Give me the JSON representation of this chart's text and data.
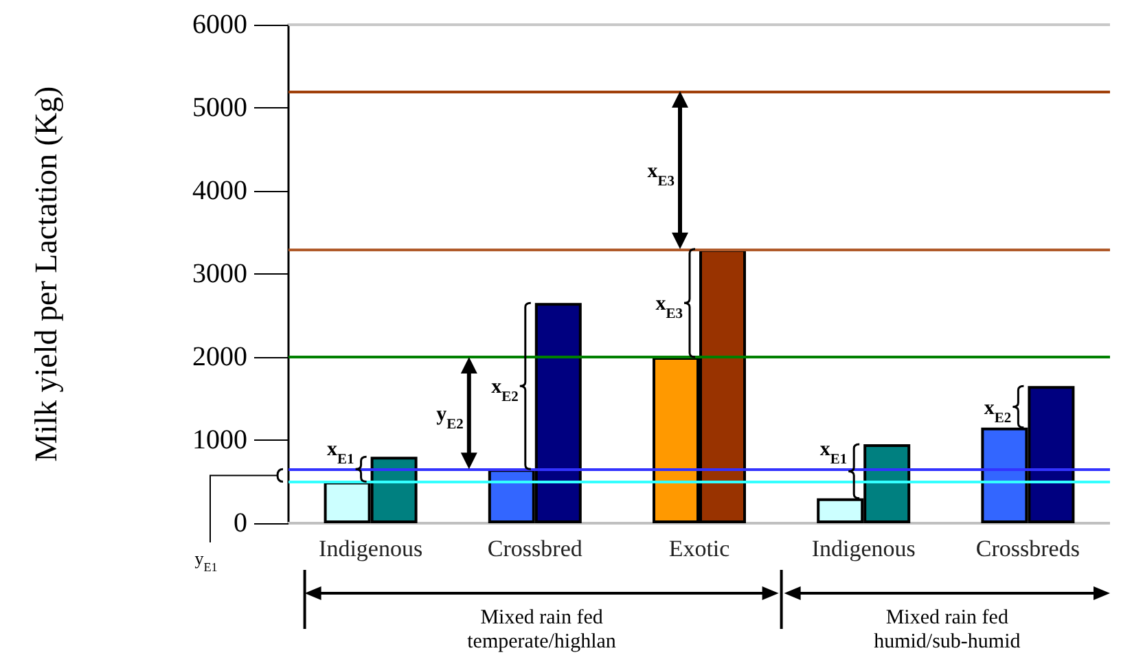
{
  "chart_data": {
    "type": "bar",
    "ylabel": "Milk yield per Lactation (Kg)",
    "categories": [
      "Indigenous",
      "Crossbred",
      "Exotic",
      "Indigenous",
      "Crossbreds"
    ],
    "series": [
      {
        "colors": [
          "#ccffff",
          "#3366ff",
          "#ff9900",
          "#ccffff",
          "#3366ff"
        ],
        "values": [
          500,
          650,
          2000,
          300,
          1150
        ]
      },
      {
        "colors": [
          "#008080",
          "#000080",
          "#993300",
          "#008080",
          "#000080"
        ],
        "values": [
          800,
          2650,
          3300,
          950,
          1650
        ]
      }
    ],
    "ylim": [
      0,
      6000
    ],
    "yticks": [
      0,
      1000,
      2000,
      3000,
      4000,
      5000,
      6000
    ],
    "grid": false,
    "ref_lines": [
      {
        "axis": "y",
        "value": 500,
        "color": "#33ffff"
      },
      {
        "axis": "y",
        "value": 650,
        "color": "#3333ff"
      },
      {
        "axis": "y",
        "value": 2000,
        "color": "#008000"
      },
      {
        "axis": "y",
        "value": 3300,
        "color": "#b05a2a"
      },
      {
        "axis": "y",
        "value": 5200,
        "color": "#a0400a"
      }
    ],
    "annotations": [
      "x$_{E1}$",
      "y$_{E2}$",
      "x$_{E2}$",
      "x$_{E3}$",
      "x$_{E3}$",
      "x$_{E1}$",
      "x$_{E2}$",
      "y$_{E1}$",
      "Mixed rain fed\ntemperate/highlan",
      "Mixed rain fed\nhumid/sub-humid"
    ]
  }
}
